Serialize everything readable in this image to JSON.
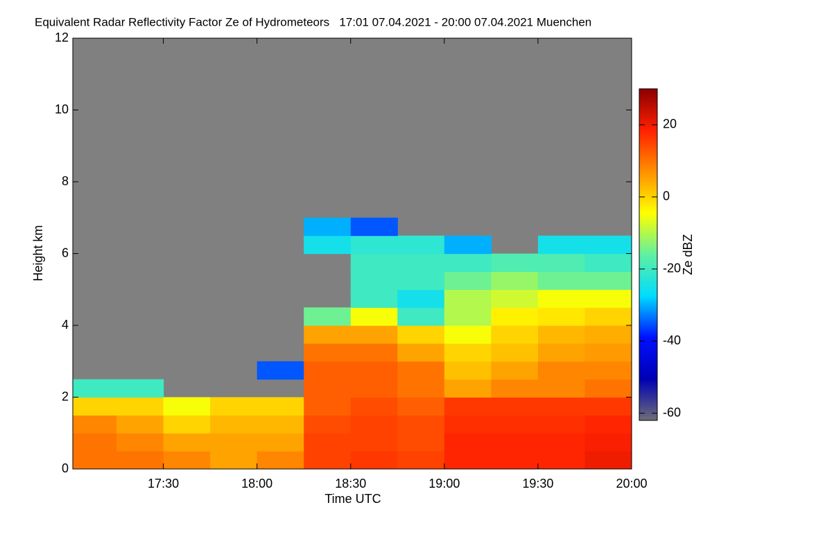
{
  "chart_data": {
    "type": "heatmap",
    "title": "Equivalent Radar Reflectivity Factor Ze of Hydrometeors   17:01 07.04.2021 - 20:00 07.04.2021 Muenchen",
    "xlabel": "Time UTC",
    "ylabel": "Height km",
    "colorbar_label": "Ze dBZ",
    "xlim": [
      "17:01",
      "20:00"
    ],
    "xticks": [
      "17:30",
      "18:00",
      "18:30",
      "19:00",
      "19:30",
      "20:00"
    ],
    "ylim": [
      0,
      12
    ],
    "yticks": [
      0,
      2,
      4,
      6,
      8,
      10,
      12
    ],
    "zlim": [
      -62,
      30
    ],
    "zticks": [
      -60,
      -40,
      -20,
      0,
      20
    ],
    "nan_color": "#808080",
    "colormap": [
      "#6e6e78",
      "#0000b4",
      "#0010ff",
      "#00dcff",
      "#60f0a0",
      "#ffff00",
      "#ff9000",
      "#ff2000",
      "#8a0000"
    ],
    "xbins": [
      "17:01",
      "17:15",
      "17:30",
      "17:45",
      "18:00",
      "18:15",
      "18:30",
      "18:45",
      "19:00",
      "19:15",
      "19:30",
      "19:45",
      "20:00"
    ],
    "ybins": [
      0,
      0.5,
      1,
      1.5,
      2,
      2.5,
      3,
      3.5,
      4,
      4.5,
      5,
      5.5,
      6,
      6.5,
      7
    ],
    "z": [
      [
        10,
        10,
        8,
        5,
        8,
        15,
        16,
        15,
        18,
        18,
        18,
        20
      ],
      [
        10,
        8,
        5,
        5,
        5,
        15,
        15,
        14,
        18,
        18,
        18,
        19
      ],
      [
        8,
        5,
        0,
        3,
        3,
        14,
        15,
        14,
        17,
        17,
        17,
        18
      ],
      [
        0,
        0,
        -5,
        0,
        0,
        12,
        14,
        12,
        16,
        16,
        16,
        16
      ],
      [
        -20,
        -20,
        null,
        null,
        null,
        12,
        12,
        10,
        5,
        8,
        8,
        10
      ],
      [
        null,
        null,
        null,
        null,
        -35,
        12,
        12,
        10,
        2,
        5,
        8,
        8
      ],
      [
        null,
        null,
        null,
        null,
        null,
        10,
        10,
        5,
        0,
        2,
        5,
        6
      ],
      [
        null,
        null,
        null,
        null,
        null,
        5,
        5,
        0,
        -5,
        0,
        3,
        4
      ],
      [
        null,
        null,
        null,
        null,
        null,
        -15,
        -5,
        -20,
        -10,
        -3,
        -2,
        0
      ],
      [
        null,
        null,
        null,
        null,
        null,
        null,
        -20,
        -25,
        -10,
        -8,
        -5,
        -5
      ],
      [
        null,
        null,
        null,
        null,
        null,
        null,
        -20,
        -20,
        -15,
        -12,
        -15,
        -15
      ],
      [
        null,
        null,
        null,
        null,
        null,
        null,
        -20,
        -20,
        -20,
        -18,
        -18,
        -20
      ],
      [
        null,
        null,
        null,
        null,
        null,
        -25,
        -22,
        -22,
        -30,
        null,
        -25,
        -25
      ],
      [
        null,
        null,
        null,
        null,
        null,
        -30,
        -35,
        null,
        null,
        null,
        null,
        null
      ]
    ]
  }
}
